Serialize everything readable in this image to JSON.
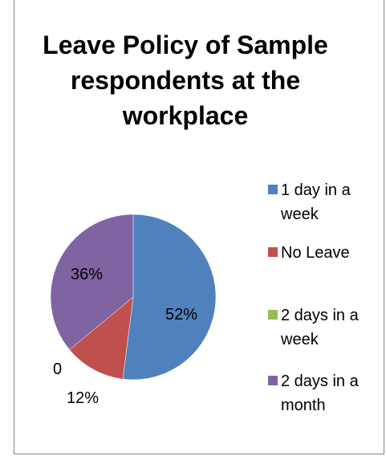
{
  "chart_data": {
    "type": "pie",
    "title_lines": [
      "Leave Policy of Sample",
      "respondents at the",
      "workplace"
    ],
    "categories": [
      "1 day in a week",
      "No Leave",
      "2 days in a week",
      "2 days in a month"
    ],
    "values": [
      52,
      12,
      0,
      36
    ],
    "data_labels": [
      "52%",
      "12%",
      "0",
      "36%"
    ],
    "legend_position": "right",
    "colors": [
      "#4F81BD",
      "#C0504D",
      "#9BBB59",
      "#8064A2"
    ]
  },
  "legend": {
    "items": [
      {
        "label": "1 day in a week",
        "color": "#4F81BD"
      },
      {
        "label": "No Leave",
        "color": "#C0504D"
      },
      {
        "label": "2 days in a week",
        "color": "#9BBB59"
      },
      {
        "label": "2 days in a month",
        "color": "#8064A2"
      }
    ]
  }
}
